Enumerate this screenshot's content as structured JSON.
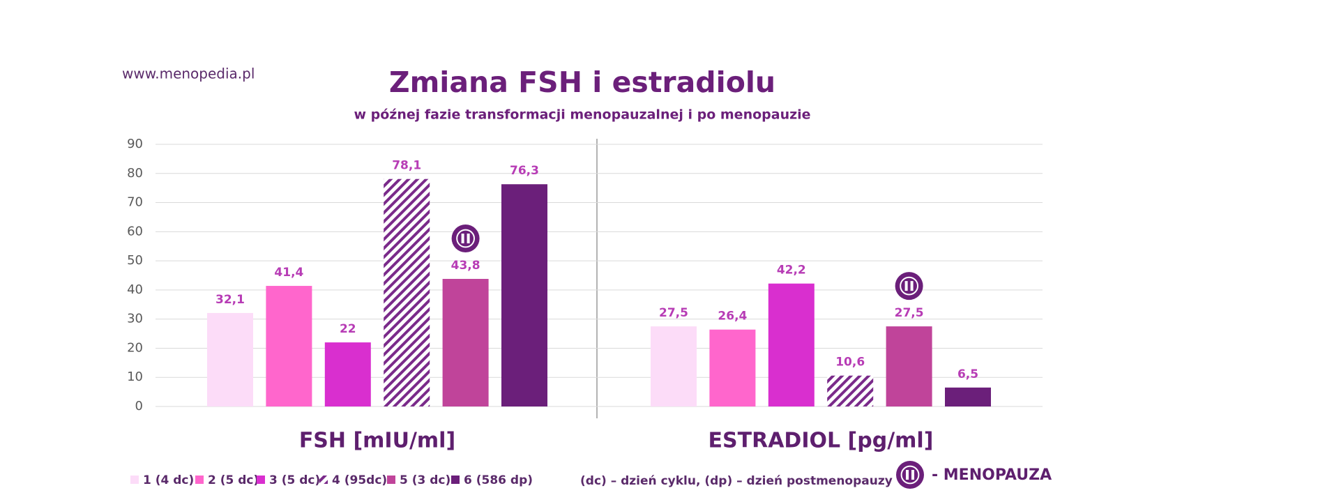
{
  "chart_data": {
    "type": "bar",
    "title": "Zmiana FSH i estradiolu",
    "subtitle": "w późnej fazie transformacji menopauzalnej i po menopauzie",
    "source": "www.menopedia.pl",
    "footnote": "(dc) – dzień cyklu, (dp) – dzień postmenopauzy",
    "marker_legend": "- MENOPAUZA",
    "categories": [
      "FSH [mIU/ml]",
      "ESTRADIOL [pg/ml]"
    ],
    "series": [
      {
        "name": "1 (4 dc)",
        "color": "#fcdcf8",
        "values": [
          32.1,
          27.5
        ],
        "value_labels": [
          "32,1",
          "27,5"
        ]
      },
      {
        "name": "2 (5 dc)",
        "color": "#ff66cc",
        "values": [
          41.4,
          26.4
        ],
        "value_labels": [
          "41,4",
          "26,4"
        ]
      },
      {
        "name": "3 (5 dc)",
        "color": "#d92fcf",
        "values": [
          22,
          42.2
        ],
        "value_labels": [
          "22",
          "42,2"
        ]
      },
      {
        "name": "4 (95dc)",
        "color": "#7a2a8a",
        "hatch": true,
        "values": [
          78.1,
          10.6
        ],
        "value_labels": [
          "78,1",
          "10,6"
        ]
      },
      {
        "name": "5 (3 dc)",
        "color": "#c0449a",
        "marker": "menopause",
        "values": [
          43.8,
          27.5
        ],
        "value_labels": [
          "43,8",
          "27,5"
        ]
      },
      {
        "name": "6 (586 dp)",
        "color": "#6b1f7a",
        "values": [
          76.3,
          6.5
        ],
        "value_labels": [
          "76,3",
          "6,5"
        ]
      }
    ],
    "ylim": [
      0,
      90
    ],
    "yticks": [
      0,
      10,
      20,
      30,
      40,
      50,
      60,
      70,
      80,
      90
    ],
    "grid": true
  }
}
